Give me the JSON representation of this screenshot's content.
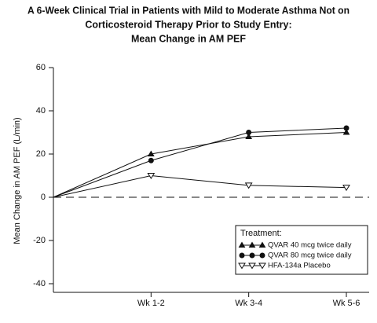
{
  "chart_data": {
    "type": "line",
    "title": [
      "A 6-Week Clinical Trial in Patients with Mild to Moderate Asthma Not on",
      "Corticosteroid Therapy Prior to Study Entry:",
      "Mean Change in AM PEF"
    ],
    "y_label": "Mean Change in AM PEF (L/min)",
    "categories": [
      null,
      "Wk 1-2",
      "Wk 3-4",
      "Wk 5-6"
    ],
    "ylim": [
      -44,
      60
    ],
    "yticks": [
      -40,
      -20,
      0,
      20,
      40,
      60
    ],
    "hline": 0,
    "legend_title": "Treatment:",
    "legend_position": "lower right",
    "series": [
      {
        "name": "QVAR 40 mcg twice daily",
        "color": "#111111",
        "marker": "triangle",
        "values": [
          0,
          20,
          28,
          30
        ]
      },
      {
        "name": "QVAR 80 mcg twice daily",
        "color": "#111111",
        "marker": "circle",
        "values": [
          0,
          17,
          30,
          32
        ]
      },
      {
        "name": "HFA-134a Placebo",
        "color": "#111111",
        "marker": "open-triangle-down",
        "values": [
          0,
          10,
          5.5,
          4.5
        ]
      }
    ]
  }
}
